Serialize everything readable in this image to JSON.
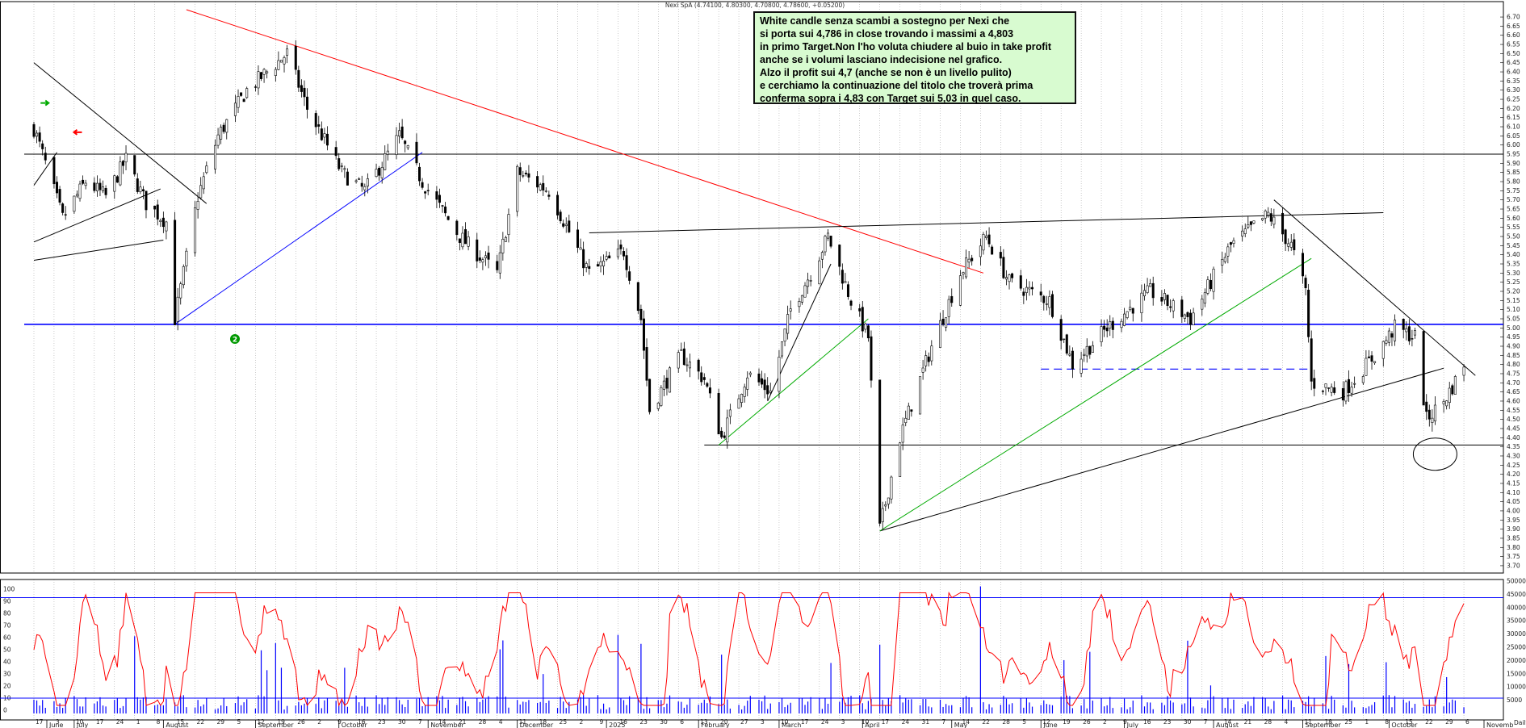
{
  "header": {
    "instrument_line": "Nexi SpA (4.74100, 4.80300, 4.70800, 4.78600, +0.05200)"
  },
  "annotation": {
    "lines": [
      "White candle senza scambi a sostegno per Nexi che",
      "si porta sui 4,786 in close trovando i massimi a 4,803",
      "in primo Target.Non l'ho voluta chiudere al buio in take profit",
      "anche se i volumi lasciano indecisione nel grafico.",
      "Alzo il profit sui 4,7 (anche se non è un livello pulito)",
      "e cerchiamo la continuazione del titolo che troverà prima",
      "conferma sopra i 4,83 con Target sui 5,03 in quel caso."
    ]
  },
  "markers": {
    "circled_number": "2"
  },
  "colors": {
    "price_line": "#000000",
    "trend_red": "#ff0000",
    "trend_blue": "#0000ff",
    "trend_green": "#00aa00",
    "oscillator": "#ff0000",
    "volume": "#0000ff",
    "arrow_up": "#00aa00",
    "arrow_down": "#ff0000",
    "annotation_bg": "#d8fbd0"
  },
  "chart_data": [
    {
      "type": "candlestick",
      "title": "Nexi SpA",
      "y_axis_side": "right",
      "ylim": [
        3.66,
        6.74
      ],
      "yticks": [
        "6.70",
        "6.65",
        "6.60",
        "6.55",
        "6.50",
        "6.45",
        "6.40",
        "6.35",
        "6.30",
        "6.25",
        "6.20",
        "6.15",
        "6.10",
        "6.05",
        "6.00",
        "5.95",
        "5.90",
        "5.85",
        "5.80",
        "5.75",
        "5.70",
        "5.65",
        "5.60",
        "5.55",
        "5.50",
        "5.45",
        "5.40",
        "5.35",
        "5.30",
        "5.25",
        "5.20",
        "5.15",
        "5.10",
        "5.05",
        "5.00",
        "4.95",
        "4.90",
        "4.85",
        "4.80",
        "4.75",
        "4.70",
        "4.65",
        "4.60",
        "4.55",
        "4.50",
        "4.45",
        "4.40",
        "4.35",
        "4.30",
        "4.25",
        "4.20",
        "4.15",
        "4.10",
        "4.05",
        "4.00",
        "3.95",
        "3.90",
        "3.85",
        "3.80",
        "3.75",
        "3.70"
      ],
      "horizontal_levels": [
        {
          "value": 5.95,
          "color": "black"
        },
        {
          "value": 5.02,
          "color": "blue"
        },
        {
          "value": 4.36,
          "color": "black"
        }
      ],
      "close_path_key": [
        [
          "2024-06-07",
          6.15
        ],
        [
          "2024-06-13",
          6.28
        ],
        [
          "2024-06-20",
          5.95
        ],
        [
          "2024-06-27",
          5.6
        ],
        [
          "2024-07-05",
          5.8
        ],
        [
          "2024-07-12",
          5.72
        ],
        [
          "2024-07-19",
          5.92
        ],
        [
          "2024-07-26",
          5.68
        ],
        [
          "2024-08-02",
          5.58
        ],
        [
          "2024-08-05",
          5.05
        ],
        [
          "2024-08-13",
          5.72
        ],
        [
          "2024-08-20",
          6.05
        ],
        [
          "2024-08-30",
          6.3
        ],
        [
          "2024-09-13",
          6.5
        ],
        [
          "2024-09-20",
          6.2
        ],
        [
          "2024-10-02",
          5.85
        ],
        [
          "2024-10-10",
          5.75
        ],
        [
          "2024-10-22",
          6.05
        ],
        [
          "2024-10-30",
          5.8
        ],
        [
          "2024-11-12",
          5.5
        ],
        [
          "2024-11-25",
          5.3
        ],
        [
          "2024-12-02",
          5.85
        ],
        [
          "2024-12-13",
          5.75
        ],
        [
          "2024-12-27",
          5.3
        ],
        [
          "2025-01-08",
          5.42
        ],
        [
          "2025-01-14",
          5.05
        ],
        [
          "2025-01-17",
          4.55
        ],
        [
          "2025-01-28",
          4.85
        ],
        [
          "2025-02-05",
          4.72
        ],
        [
          "2025-02-11",
          4.4
        ],
        [
          "2025-02-20",
          4.75
        ],
        [
          "2025-02-28",
          4.65
        ],
        [
          "2025-03-07",
          5.1
        ],
        [
          "2025-03-14",
          5.3
        ],
        [
          "2025-03-20",
          5.5
        ],
        [
          "2025-03-28",
          5.15
        ],
        [
          "2025-04-03",
          4.95
        ],
        [
          "2025-04-07",
          3.9
        ],
        [
          "2025-04-14",
          4.4
        ],
        [
          "2025-04-25",
          4.9
        ],
        [
          "2025-05-05",
          5.3
        ],
        [
          "2025-05-14",
          5.5
        ],
        [
          "2025-05-22",
          5.25
        ],
        [
          "2025-06-05",
          5.15
        ],
        [
          "2025-06-13",
          4.8
        ],
        [
          "2025-06-25",
          5.0
        ],
        [
          "2025-07-10",
          5.2
        ],
        [
          "2025-07-24",
          5.05
        ],
        [
          "2025-08-07",
          5.45
        ],
        [
          "2025-08-20",
          5.62
        ],
        [
          "2025-08-28",
          5.45
        ],
        [
          "2025-09-02",
          5.2
        ],
        [
          "2025-09-04",
          4.7
        ],
        [
          "2025-09-15",
          4.65
        ],
        [
          "2025-09-26",
          4.85
        ],
        [
          "2025-10-03",
          5.0
        ],
        [
          "2025-10-10",
          4.95
        ],
        [
          "2025-10-14",
          4.5
        ],
        [
          "2025-10-20",
          4.6
        ],
        [
          "2025-10-27",
          4.786
        ]
      ],
      "last_bar": {
        "open": 4.741,
        "high": 4.803,
        "low": 4.708,
        "close": 4.786,
        "change": 0.052
      }
    },
    {
      "type": "line",
      "name": "oscillator",
      "ylim": [
        0,
        100
      ],
      "yticks": [
        "100",
        "90",
        "80",
        "70",
        "60",
        "50",
        "40",
        "30",
        "20",
        "10",
        "0"
      ],
      "levels": [
        93,
        10
      ]
    },
    {
      "type": "bar",
      "name": "volume",
      "ylim": [
        0,
        50000
      ],
      "yticks": [
        "50000",
        "45000",
        "40000",
        "35000",
        "30000",
        "25000",
        "20000",
        "15000",
        "10000",
        "5000"
      ]
    }
  ],
  "x_axis": {
    "day_labels": [
      "17",
      "3",
      "10",
      "17",
      "24",
      "1",
      "8",
      "15",
      "22",
      "29",
      "5",
      "12",
      "19",
      "26",
      "2",
      "9",
      "16",
      "23",
      "30",
      "7",
      "14",
      "21",
      "28",
      "4",
      "11",
      "18",
      "25",
      "2",
      "9",
      "16",
      "23",
      "30",
      "6",
      "13",
      "20",
      "27",
      "3",
      "10",
      "17",
      "24",
      "3",
      "10",
      "17",
      "24",
      "31",
      "7",
      "14",
      "22",
      "28",
      "5",
      "12",
      "19",
      "26",
      "2",
      "9",
      "16",
      "23",
      "30",
      "7",
      "14",
      "21",
      "28",
      "4",
      "11",
      "18",
      "25",
      "1",
      "8",
      "15",
      "22",
      "29",
      "6",
      "13",
      "20",
      "27",
      "3",
      "10"
    ],
    "month_labels": [
      "June",
      "July",
      "August",
      "September",
      "October",
      "November",
      "December",
      "2025",
      "February",
      "March",
      "April",
      "May",
      "June",
      "July",
      "August",
      "September",
      "October",
      "Novemb"
    ],
    "corner_label": "Daily"
  }
}
